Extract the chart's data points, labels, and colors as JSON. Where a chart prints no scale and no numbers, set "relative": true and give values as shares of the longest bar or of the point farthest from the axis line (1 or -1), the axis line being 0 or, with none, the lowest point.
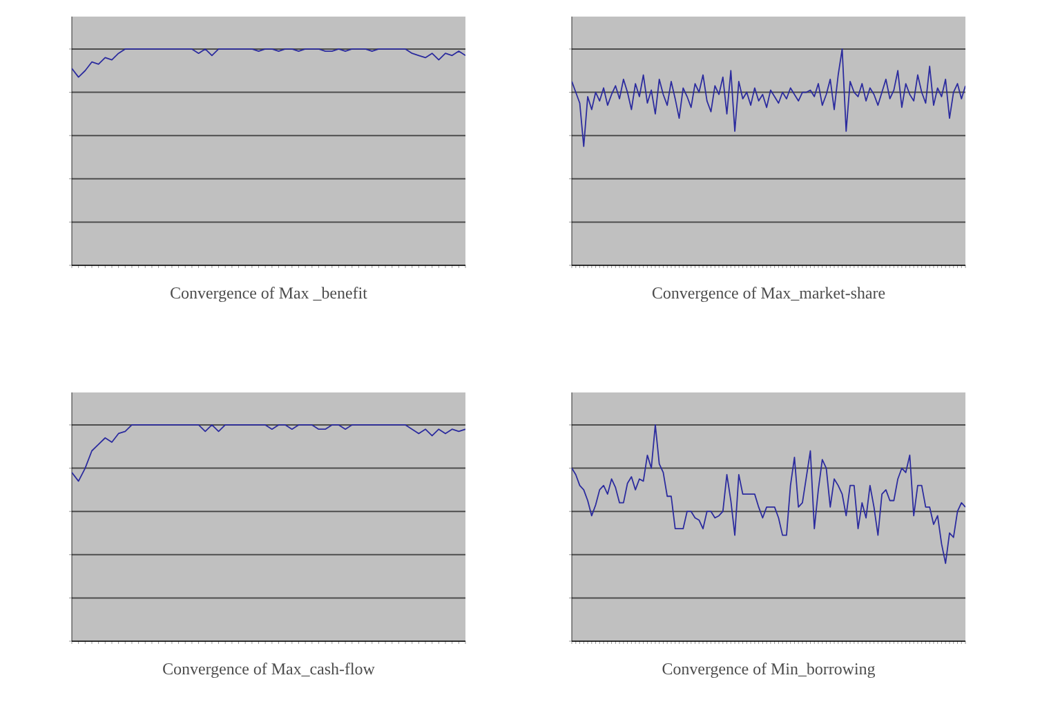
{
  "chart_data": [
    {
      "type": "line",
      "title": "Convergence of Max _benefit",
      "relative": true,
      "grid": "y",
      "categories": [
        null,
        null,
        null,
        null,
        null,
        null,
        null,
        null,
        null,
        null,
        null,
        null,
        null,
        null,
        null,
        null,
        null,
        null,
        null,
        null,
        null,
        null,
        null,
        null,
        null,
        null,
        null,
        null,
        null,
        null,
        null,
        null,
        null,
        null,
        null,
        null,
        null,
        null,
        null,
        null,
        null,
        null,
        null,
        null,
        null,
        null,
        null,
        null,
        null,
        null,
        null,
        null,
        null,
        null,
        null,
        null,
        null,
        null,
        null,
        null
      ],
      "series": [
        {
          "color": "#2b2b9e",
          "values": [
            0.91,
            0.87,
            0.9,
            0.94,
            0.93,
            0.96,
            0.95,
            0.98,
            1,
            1,
            1,
            1,
            1,
            1,
            1,
            1,
            1,
            1,
            1,
            0.98,
            1,
            0.97,
            1,
            1,
            1,
            1,
            1,
            1,
            0.99,
            1,
            1,
            0.99,
            1,
            1,
            0.99,
            1,
            1,
            1,
            0.99,
            0.99,
            1,
            0.99,
            1,
            1,
            1,
            0.99,
            1,
            1,
            1,
            1,
            1,
            0.98,
            0.97,
            0.96,
            0.98,
            0.95,
            0.98,
            0.97,
            0.99,
            0.97
          ]
        }
      ]
    },
    {
      "type": "line",
      "title": "Convergence of Max_market-share",
      "relative": true,
      "grid": "y",
      "categories": [
        null,
        null,
        null,
        null,
        null,
        null,
        null,
        null,
        null,
        null,
        null,
        null,
        null,
        null,
        null,
        null,
        null,
        null,
        null,
        null,
        null,
        null,
        null,
        null,
        null,
        null,
        null,
        null,
        null,
        null,
        null,
        null,
        null,
        null,
        null,
        null,
        null,
        null,
        null,
        null,
        null,
        null,
        null,
        null,
        null,
        null,
        null,
        null,
        null,
        null,
        null,
        null,
        null,
        null,
        null,
        null,
        null,
        null,
        null,
        null,
        null,
        null,
        null,
        null,
        null,
        null,
        null,
        null,
        null,
        null,
        null,
        null,
        null,
        null,
        null,
        null,
        null,
        null,
        null,
        null,
        null,
        null,
        null,
        null,
        null,
        null,
        null,
        null,
        null,
        null,
        null,
        null,
        null,
        null,
        null,
        null,
        null,
        null,
        null,
        null
      ],
      "series": [
        {
          "color": "#2b2b9e",
          "values": [
            0.85,
            0.8,
            0.75,
            0.55,
            0.78,
            0.72,
            0.8,
            0.76,
            0.82,
            0.74,
            0.79,
            0.83,
            0.77,
            0.86,
            0.8,
            0.72,
            0.84,
            0.78,
            0.88,
            0.75,
            0.81,
            0.7,
            0.86,
            0.79,
            0.74,
            0.85,
            0.77,
            0.68,
            0.82,
            0.78,
            0.73,
            0.84,
            0.8,
            0.88,
            0.76,
            0.71,
            0.83,
            0.79,
            0.87,
            0.7,
            0.9,
            0.62,
            0.85,
            0.77,
            0.8,
            0.74,
            0.82,
            0.76,
            0.79,
            0.73,
            0.81,
            0.78,
            0.75,
            0.8,
            0.77,
            0.82,
            0.79,
            0.76,
            0.8,
            0.8,
            0.81,
            0.78,
            0.84,
            0.74,
            0.79,
            0.86,
            0.72,
            0.88,
            1.0,
            0.62,
            0.85,
            0.8,
            0.78,
            0.84,
            0.76,
            0.82,
            0.79,
            0.74,
            0.8,
            0.86,
            0.77,
            0.81,
            0.9,
            0.73,
            0.84,
            0.79,
            0.76,
            0.88,
            0.8,
            0.75,
            0.92,
            0.74,
            0.82,
            0.78,
            0.86,
            0.68,
            0.8,
            0.84,
            0.77,
            0.83
          ]
        }
      ]
    },
    {
      "type": "line",
      "title": "Convergence of Max_cash-flow",
      "relative": true,
      "grid": "y",
      "categories": [
        null,
        null,
        null,
        null,
        null,
        null,
        null,
        null,
        null,
        null,
        null,
        null,
        null,
        null,
        null,
        null,
        null,
        null,
        null,
        null,
        null,
        null,
        null,
        null,
        null,
        null,
        null,
        null,
        null,
        null,
        null,
        null,
        null,
        null,
        null,
        null,
        null,
        null,
        null,
        null,
        null,
        null,
        null,
        null,
        null,
        null,
        null,
        null,
        null,
        null,
        null,
        null,
        null,
        null,
        null,
        null,
        null,
        null,
        null,
        null
      ],
      "series": [
        {
          "color": "#2b2b9e",
          "values": [
            0.78,
            0.74,
            0.8,
            0.88,
            0.91,
            0.94,
            0.92,
            0.96,
            0.97,
            1,
            1,
            1,
            1,
            1,
            1,
            1,
            1,
            1,
            1,
            1,
            0.97,
            1,
            0.97,
            1,
            1,
            1,
            1,
            1,
            1,
            1,
            0.98,
            1,
            1,
            0.98,
            1,
            1,
            1,
            0.98,
            0.98,
            1,
            1,
            0.98,
            1,
            1,
            1,
            1,
            1,
            1,
            1,
            1,
            1,
            0.98,
            0.96,
            0.98,
            0.95,
            0.98,
            0.96,
            0.98,
            0.97,
            0.98
          ]
        }
      ]
    },
    {
      "type": "line",
      "title": "Convergence of Min_borrowing",
      "relative": true,
      "grid": "y",
      "categories": [
        null,
        null,
        null,
        null,
        null,
        null,
        null,
        null,
        null,
        null,
        null,
        null,
        null,
        null,
        null,
        null,
        null,
        null,
        null,
        null,
        null,
        null,
        null,
        null,
        null,
        null,
        null,
        null,
        null,
        null,
        null,
        null,
        null,
        null,
        null,
        null,
        null,
        null,
        null,
        null,
        null,
        null,
        null,
        null,
        null,
        null,
        null,
        null,
        null,
        null,
        null,
        null,
        null,
        null,
        null,
        null,
        null,
        null,
        null,
        null,
        null,
        null,
        null,
        null,
        null,
        null,
        null,
        null,
        null,
        null,
        null,
        null,
        null,
        null,
        null,
        null,
        null,
        null,
        null,
        null,
        null,
        null,
        null,
        null,
        null,
        null,
        null,
        null,
        null,
        null,
        null,
        null,
        null,
        null,
        null,
        null,
        null,
        null,
        null,
        null
      ],
      "series": [
        {
          "color": "#2b2b9e",
          "values": [
            0.8,
            0.77,
            0.72,
            0.7,
            0.65,
            0.58,
            0.63,
            0.7,
            0.72,
            0.68,
            0.75,
            0.71,
            0.64,
            0.64,
            0.73,
            0.76,
            0.7,
            0.75,
            0.74,
            0.86,
            0.8,
            1.0,
            0.82,
            0.78,
            0.67,
            0.67,
            0.52,
            0.52,
            0.52,
            0.6,
            0.6,
            0.57,
            0.56,
            0.52,
            0.6,
            0.6,
            0.57,
            0.58,
            0.6,
            0.77,
            0.65,
            0.49,
            0.77,
            0.68,
            0.68,
            0.68,
            0.68,
            0.62,
            0.57,
            0.62,
            0.62,
            0.62,
            0.57,
            0.49,
            0.49,
            0.72,
            0.85,
            0.62,
            0.64,
            0.76,
            0.88,
            0.52,
            0.7,
            0.84,
            0.8,
            0.62,
            0.75,
            0.72,
            0.68,
            0.58,
            0.72,
            0.72,
            0.52,
            0.64,
            0.57,
            0.72,
            0.62,
            0.49,
            0.68,
            0.7,
            0.65,
            0.65,
            0.75,
            0.8,
            0.78,
            0.86,
            0.58,
            0.72,
            0.72,
            0.62,
            0.62,
            0.54,
            0.58,
            0.45,
            0.36,
            0.5,
            0.48,
            0.6,
            0.64,
            0.62
          ]
        }
      ]
    }
  ]
}
